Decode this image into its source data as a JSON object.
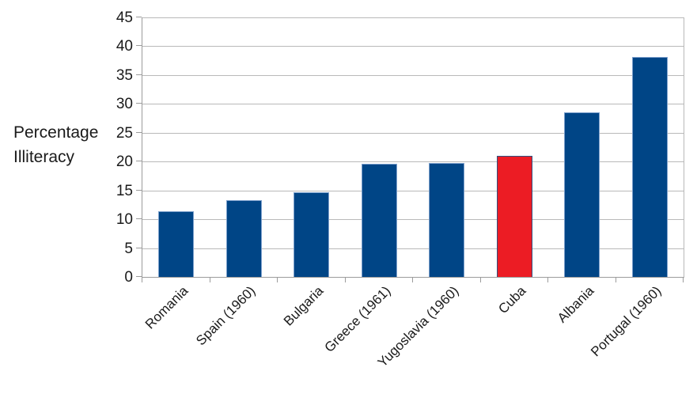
{
  "chart_data": {
    "type": "bar",
    "title": "",
    "ylabel_lines": [
      "Percentage",
      "Illiteracy"
    ],
    "xlabel": "",
    "categories": [
      "Romania",
      "Spain (1960)",
      "Bulgaria",
      "Greece (1961)",
      "Yugoslavia (1960)",
      "Cuba",
      "Albania",
      "Portugal (1960)"
    ],
    "values": [
      11.4,
      13.3,
      14.7,
      19.6,
      19.7,
      21,
      28.5,
      38.1
    ],
    "bar_colors": [
      "#004586",
      "#004586",
      "#004586",
      "#004586",
      "#004586",
      "#ec1c24",
      "#004586",
      "#004586"
    ],
    "bar_border_colors": [
      "#7da0cc",
      "#7da0cc",
      "#7da0cc",
      "#7da0cc",
      "#7da0cc",
      "#30507f",
      "#7da0cc",
      "#7da0cc"
    ],
    "highlight_category": "Cuba",
    "ylim": [
      0,
      45
    ],
    "yticks": [
      0,
      5,
      10,
      15,
      20,
      25,
      30,
      35,
      40,
      45
    ],
    "grid": "horizontal-only",
    "legend": "none",
    "colors": {
      "bar_blue": "#004586",
      "bar_red": "#ec1c24",
      "gridline": "#b9b9b9",
      "axis": "#9c9c9c",
      "text": "#1a1a1a",
      "background": "#ffffff"
    }
  }
}
